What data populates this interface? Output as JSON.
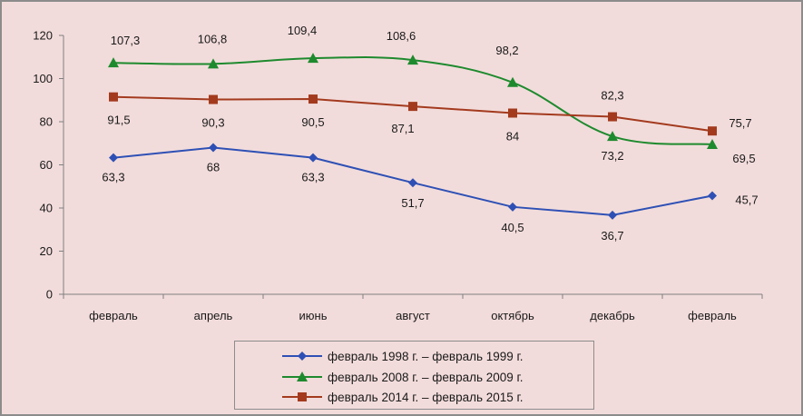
{
  "chart_data": {
    "type": "line",
    "categories": [
      "февраль",
      "апрель",
      "июнь",
      "август",
      "октябрь",
      "декабрь",
      "февраль"
    ],
    "ylim": [
      0,
      120
    ],
    "yticks": [
      0,
      20,
      40,
      60,
      80,
      100,
      120
    ],
    "grid": false,
    "legend_position": "bottom",
    "series": [
      {
        "name": "февраль 1998 г. – февраль 1999 г.",
        "values": [
          63.3,
          68,
          63.3,
          51.7,
          40.5,
          36.7,
          45.7
        ],
        "labels": [
          "63,3",
          "68",
          "63,3",
          "51,7",
          "40,5",
          "36,7",
          "45,7"
        ],
        "color": "#2e50b5",
        "marker": "diamond",
        "smooth": false,
        "label_position": "below"
      },
      {
        "name": "февраль 2008 г. – февраль 2009 г.",
        "values": [
          107.3,
          106.8,
          109.4,
          108.6,
          98.2,
          73.2,
          69.5
        ],
        "labels": [
          "107,3",
          "106,8",
          "109,4",
          "108,6",
          "98,2",
          "73,2",
          "69,5"
        ],
        "color": "#1e8a2e",
        "marker": "triangle",
        "smooth": true,
        "label_position": "above"
      },
      {
        "name": "февраль 2014 г. – февраль 2015 г.",
        "values": [
          91.5,
          90.3,
          90.5,
          87.1,
          84,
          82.3,
          75.7
        ],
        "labels": [
          "91,5",
          "90,3",
          "90,5",
          "87,1",
          "84",
          "82,3",
          "75,7"
        ],
        "color": "#a33a1e",
        "marker": "square",
        "smooth": false,
        "label_position": "below"
      }
    ]
  }
}
